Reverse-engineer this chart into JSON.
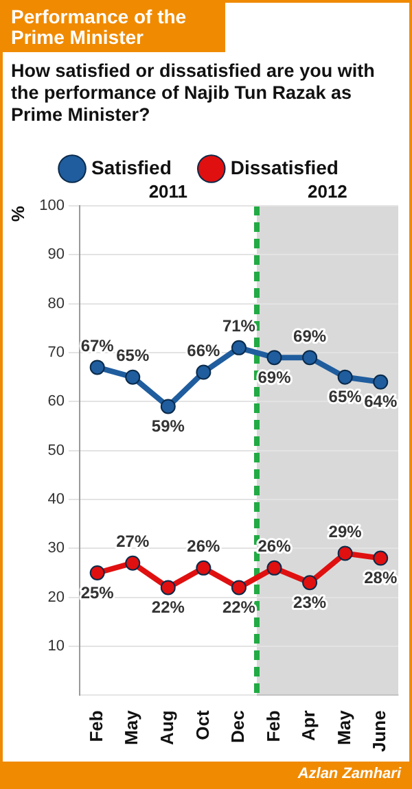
{
  "chart_data": {
    "type": "line",
    "title": "Performance of the Prime Minister",
    "subtitle": "How satisfied or dissatisfied are you with the performance of Najib Tun Razak as Prime Minister?",
    "ylabel": "%",
    "categories": [
      "Feb",
      "May",
      "Aug",
      "Oct",
      "Dec",
      "Feb",
      "Apr",
      "May",
      "June"
    ],
    "series": [
      {
        "name": "Satisfied",
        "color": "#1f5d9e",
        "values": [
          67,
          65,
          59,
          66,
          71,
          69,
          69,
          65,
          64
        ],
        "value_labels": [
          "67%",
          "65%",
          "59%",
          "66%",
          "71%",
          "69%",
          "69%",
          "65%",
          "64%"
        ]
      },
      {
        "name": "Dissatisfied",
        "color": "#e01010",
        "values": [
          25,
          27,
          22,
          26,
          22,
          26,
          23,
          29,
          28
        ],
        "value_labels": [
          "25%",
          "27%",
          "22%",
          "26%",
          "22%",
          "26%",
          "23%",
          "29%",
          "28%"
        ]
      }
    ],
    "ylim": [
      0,
      100
    ],
    "yticks": [
      10,
      20,
      30,
      40,
      50,
      60,
      70,
      80,
      90,
      100
    ],
    "annotations": [
      "2011",
      "2012",
      "Azlan Zamhari"
    ],
    "grid": "y",
    "legend": "top",
    "marker": "circle",
    "line_style": "solid"
  }
}
